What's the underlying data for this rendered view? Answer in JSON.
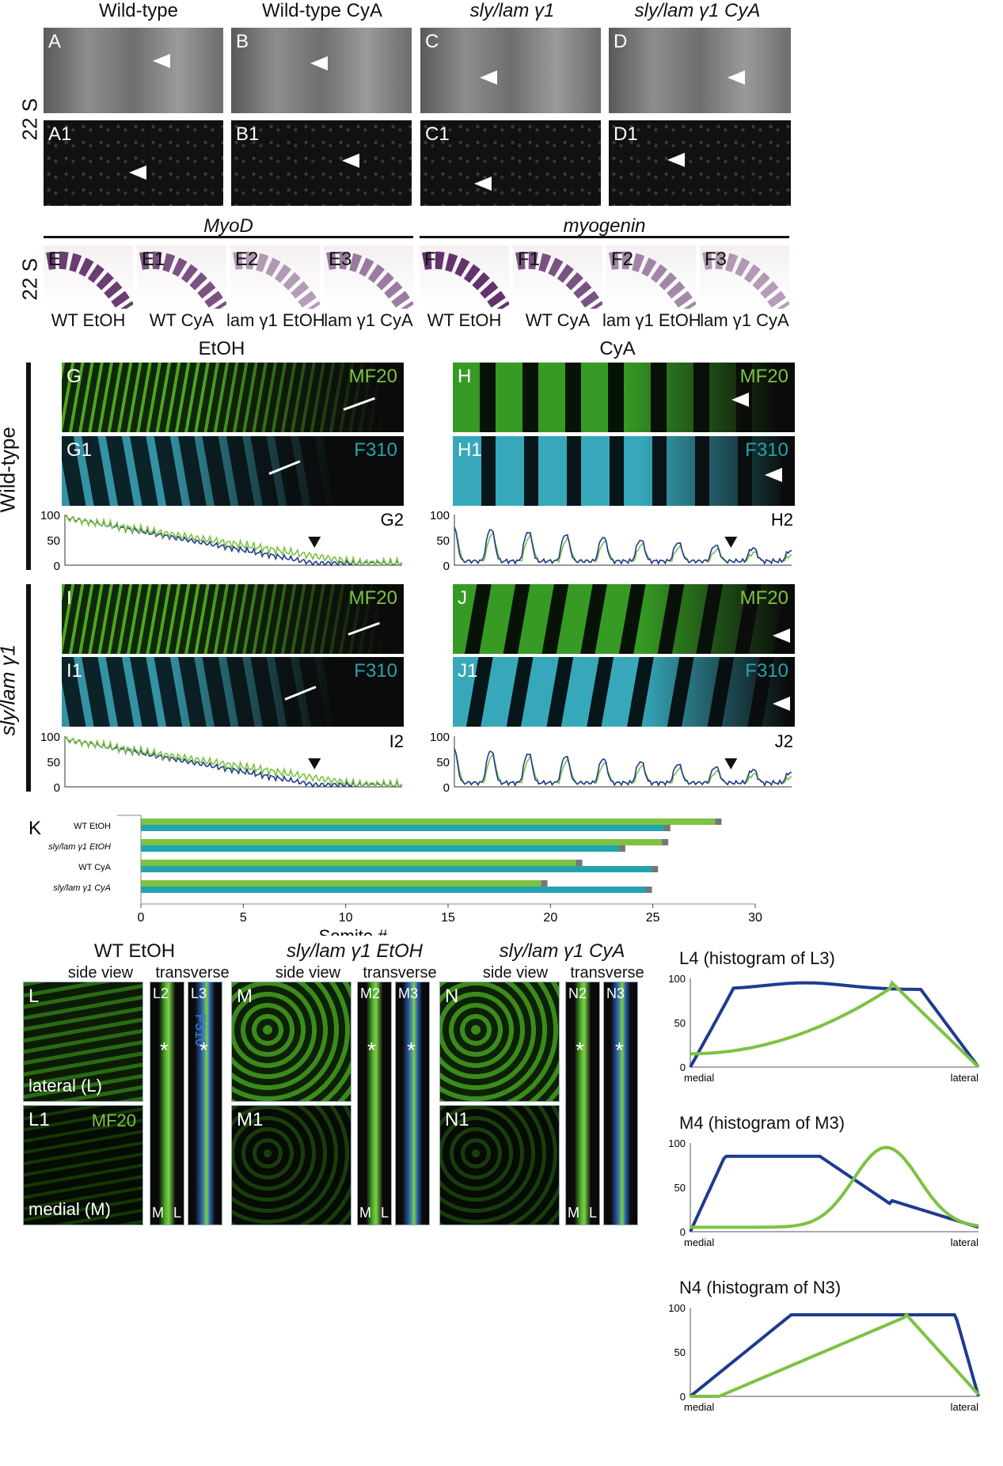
{
  "headers": {
    "wt": "Wild-type",
    "wt_cya": "Wild-type CyA",
    "sly": "sly/lam γ1",
    "sly_cya": "sly/lam γ1 CyA",
    "stage": "22 S",
    "myod": "MyoD",
    "myogenin": "myogenin",
    "etoh": "EtOH",
    "cya": "CyA",
    "row_wt": "Wild-type",
    "row_sly": "sly/lam γ1"
  },
  "top_panels": [
    "A",
    "B",
    "C",
    "D"
  ],
  "top_panels_1": [
    "A1",
    "B1",
    "C1",
    "D1"
  ],
  "ish_panels": [
    "E",
    "E1",
    "E2",
    "E3",
    "F",
    "F1",
    "F2",
    "F3"
  ],
  "ish_captions": [
    "WT EtOH",
    "WT CyA",
    "lam γ1 EtOH",
    "lam γ1 CyA",
    "WT EtOH",
    "WT CyA",
    "lam γ1 EtOH",
    "lam γ1 CyA"
  ],
  "fluor": {
    "G": "G",
    "G1": "G1",
    "G2": "G2",
    "H": "H",
    "H1": "H1",
    "H2": "H2",
    "I": "I",
    "I1": "I1",
    "I2": "I2",
    "J": "J",
    "J1": "J1",
    "J2": "J2",
    "mf20": "MF20",
    "f310": "F310"
  },
  "line_axis_ticks": [
    "100",
    "50",
    "0"
  ],
  "colors": {
    "green": "#7dc242",
    "blue": "#1f3b8f",
    "cyan": "#22a4b0"
  },
  "bar_chart": {
    "label": "K",
    "xlabel": "Somite #",
    "ticks": [
      "0",
      "5",
      "10",
      "15",
      "20",
      "25",
      "30"
    ],
    "categories": [
      "WT EtOH",
      "sly/lam γ1 EtOH",
      "WT CyA",
      "sly/lam γ1 CyA"
    ]
  },
  "chart_data": {
    "type": "bar",
    "categories": [
      "WT EtOH",
      "sly/lam γ1 EtOH",
      "WT CyA",
      "sly/lam γ1 CyA"
    ],
    "series": [
      {
        "values": [
          28.2,
          25.6,
          21.4,
          19.7
        ]
      },
      {
        "values": [
          25.7,
          23.5,
          25.1,
          24.8
        ]
      }
    ],
    "xlabel": "Somite #",
    "xlim": [
      0,
      30
    ]
  },
  "bottom": {
    "wt_etoh": "WT EtOH",
    "sly_etoh": "sly/lam γ1 EtOH",
    "sly_cya": "sly/lam γ1 CyA",
    "side_view": "side view",
    "transverse": "transverse",
    "L": "L",
    "L1": "L1",
    "L2": "L2",
    "L3": "L3",
    "M": "M",
    "M1": "M1",
    "M2": "M2",
    "M3": "M3",
    "N": "N",
    "N1": "N1",
    "N2": "N2",
    "N3": "N3",
    "lateral": "lateral (L)",
    "medial": "medial (M)",
    "mf20": "MF20",
    "f310": "F310",
    "m": "M",
    "l": "L",
    "star": "*"
  },
  "histograms": [
    {
      "title": "L4 (histogram of L3)"
    },
    {
      "title": "M4 (histogram of M3)"
    },
    {
      "title": "N4 (histogram of N3)"
    }
  ],
  "hist_ticks": [
    "100",
    "50",
    "0"
  ],
  "hist_xlabels": [
    "medial",
    "lateral"
  ]
}
